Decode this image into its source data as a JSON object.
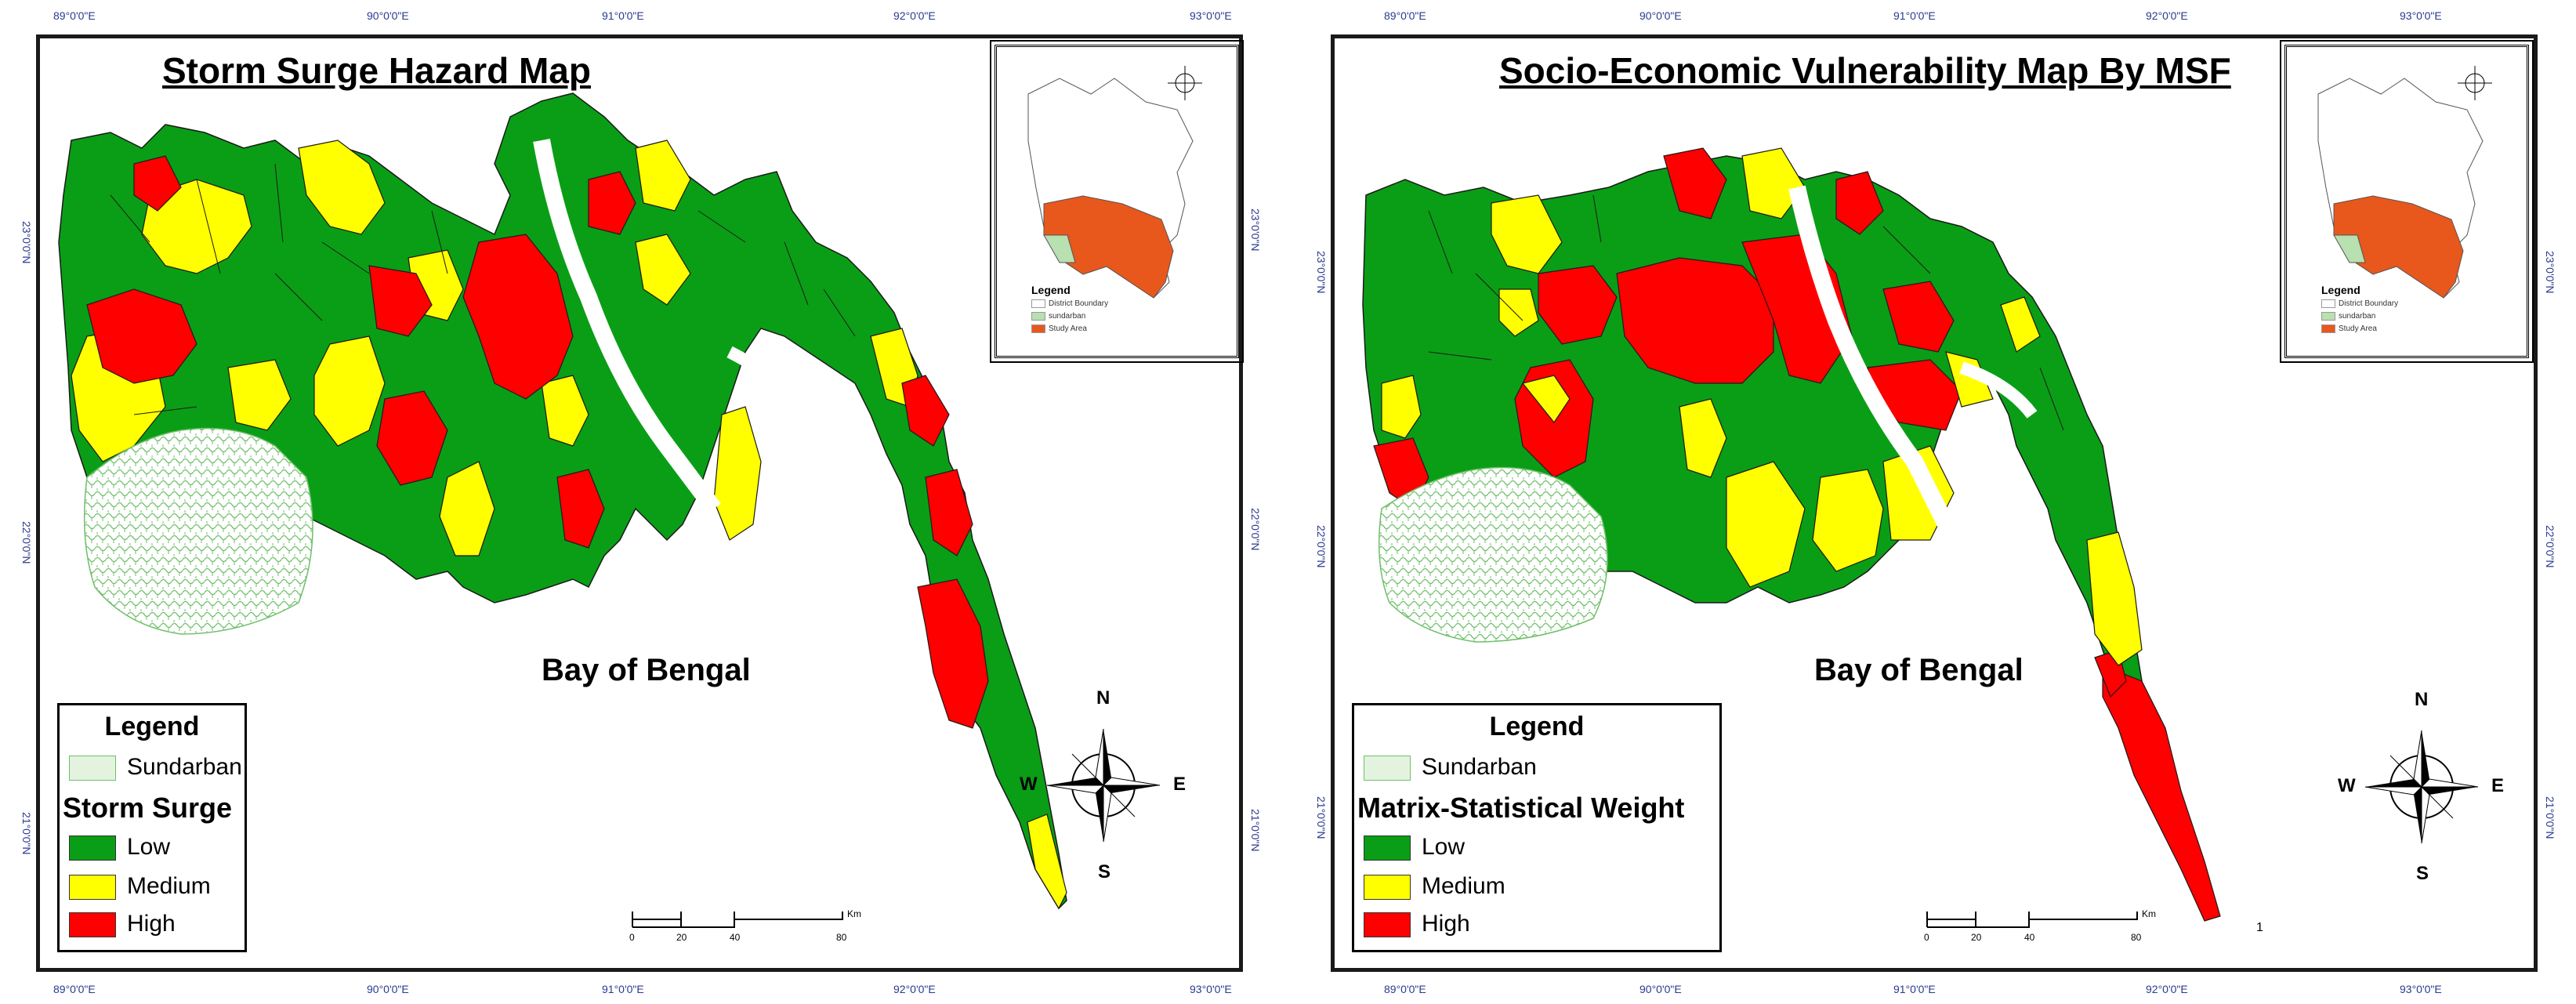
{
  "maps": [
    {
      "id": "storm-surge",
      "title": "Storm Surge Hazard Map",
      "sea_label": "Bay of Bengal",
      "legend": {
        "title": "Legend",
        "sundarban_label": "Sundarban",
        "heading": "Storm Surge",
        "classes": [
          {
            "label": "Low",
            "color": "#0a9e16"
          },
          {
            "label": "Medium",
            "color": "#ffff00"
          },
          {
            "label": "High",
            "color": "#ff0000"
          }
        ]
      },
      "graticule": {
        "top": [
          "89°0'0\"E",
          "90°0'0\"E",
          "91°0'0\"E",
          "92°0'0\"E",
          "93°0'0\"E"
        ],
        "bottom": [
          "89°0'0\"E",
          "90°0'0\"E",
          "91°0'0\"E",
          "92°0'0\"E",
          "93°0'0\"E"
        ],
        "left": [
          "23°0'0\"N",
          "22°0'0\"N",
          "21°0'0\"N"
        ],
        "right": [
          "23°0'0\"N",
          "22°0'0\"N",
          "21°0'0\"N"
        ]
      },
      "scale": {
        "ticks": [
          "0",
          "20",
          "40",
          "80"
        ],
        "unit": "Km"
      },
      "compass": {
        "n": "N",
        "s": "S",
        "e": "E",
        "w": "W"
      },
      "inset": {
        "legend_title": "Legend",
        "items": [
          {
            "label": "District Boundary",
            "color": "#ffffff"
          },
          {
            "label": "sundarban",
            "color": "#b8e0b0"
          },
          {
            "label": "Study Area",
            "color": "#e8571c"
          }
        ]
      }
    },
    {
      "id": "socio-economic",
      "title": "Socio-Economic Vulnerability Map By MSF",
      "sea_label": "Bay of Bengal",
      "legend": {
        "title": "Legend",
        "sundarban_label": "Sundarban",
        "heading": "Matrix-Statistical Weight",
        "classes": [
          {
            "label": "Low",
            "color": "#0a9e16"
          },
          {
            "label": "Medium",
            "color": "#ffff00"
          },
          {
            "label": "High",
            "color": "#ff0000"
          }
        ]
      },
      "graticule": {
        "top": [
          "89°0'0\"E",
          "90°0'0\"E",
          "91°0'0\"E",
          "92°0'0\"E",
          "93°0'0\"E"
        ],
        "bottom": [
          "89°0'0\"E",
          "90°0'0\"E",
          "91°0'0\"E",
          "92°0'0\"E",
          "93°0'0\"E"
        ],
        "left": [
          "23°0'0\"N",
          "22°0'0\"N",
          "21°0'0\"N"
        ],
        "right": [
          "23°0'0\"N",
          "22°0'0\"N",
          "21°0'0\"N"
        ]
      },
      "scale": {
        "ticks": [
          "0",
          "20",
          "40",
          "80"
        ],
        "unit": "Km"
      },
      "compass": {
        "n": "N",
        "s": "S",
        "e": "E",
        "w": "W"
      },
      "stray_mark": "1",
      "inset": {
        "legend_title": "Legend",
        "items": [
          {
            "label": "District Boundary",
            "color": "#ffffff"
          },
          {
            "label": "sundarban",
            "color": "#b8e0b0"
          },
          {
            "label": "Study Area",
            "color": "#e8571c"
          }
        ]
      }
    }
  ]
}
